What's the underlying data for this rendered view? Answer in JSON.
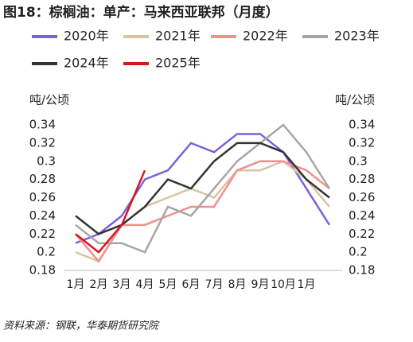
{
  "chart_data": {
    "type": "line",
    "title": "图18：棕榈油：单产：马来西亚联邦（月度）",
    "y_label": "吨/公顷",
    "y2_label": "吨/公顷",
    "source": "资料来源：钢联，华泰期货研究院",
    "categories": [
      "1月",
      "2月",
      "3月",
      "4月",
      "5月",
      "6月",
      "7月",
      "8月",
      "9月",
      "10月",
      "1月",
      null
    ],
    "series": [
      {
        "name": "2020年",
        "color": "#7b61e0",
        "values": [
          0.21,
          0.22,
          0.24,
          0.28,
          0.29,
          0.32,
          0.31,
          0.33,
          0.33,
          0.31,
          0.27,
          0.23
        ]
      },
      {
        "name": "2021年",
        "color": "#d9c4a0",
        "values": [
          0.2,
          0.19,
          0.23,
          0.25,
          0.26,
          0.27,
          0.26,
          0.29,
          0.29,
          0.3,
          0.28,
          0.25
        ]
      },
      {
        "name": "2022年",
        "color": "#f28e8e",
        "values": [
          0.22,
          0.19,
          0.23,
          0.23,
          0.24,
          0.25,
          0.25,
          0.29,
          0.3,
          0.3,
          0.29,
          0.27
        ]
      },
      {
        "name": "2023年",
        "color": "#a6a6a6",
        "values": [
          0.23,
          0.21,
          0.21,
          0.2,
          0.25,
          0.24,
          0.27,
          0.3,
          0.32,
          0.34,
          0.31,
          0.27
        ]
      },
      {
        "name": "2024年",
        "color": "#333333",
        "values": [
          0.24,
          0.22,
          0.23,
          0.25,
          0.28,
          0.27,
          0.3,
          0.32,
          0.32,
          0.31,
          0.28,
          0.26
        ]
      },
      {
        "name": "2025年",
        "color": "#d7191c",
        "values": [
          0.22,
          0.2,
          0.23,
          0.29,
          null,
          null,
          null,
          null,
          null,
          null,
          null,
          null
        ]
      }
    ],
    "ylim": [
      0.18,
      0.34
    ],
    "yticks": [
      0.18,
      0.2,
      0.22,
      0.24,
      0.26,
      0.28,
      0.3,
      0.32,
      0.34
    ],
    "y2lim": [
      0.18,
      0.34
    ],
    "y2ticks": [
      0.18,
      0.2,
      0.22,
      0.24,
      0.26,
      0.28,
      0.3,
      0.32,
      0.34
    ],
    "grid": false
  }
}
